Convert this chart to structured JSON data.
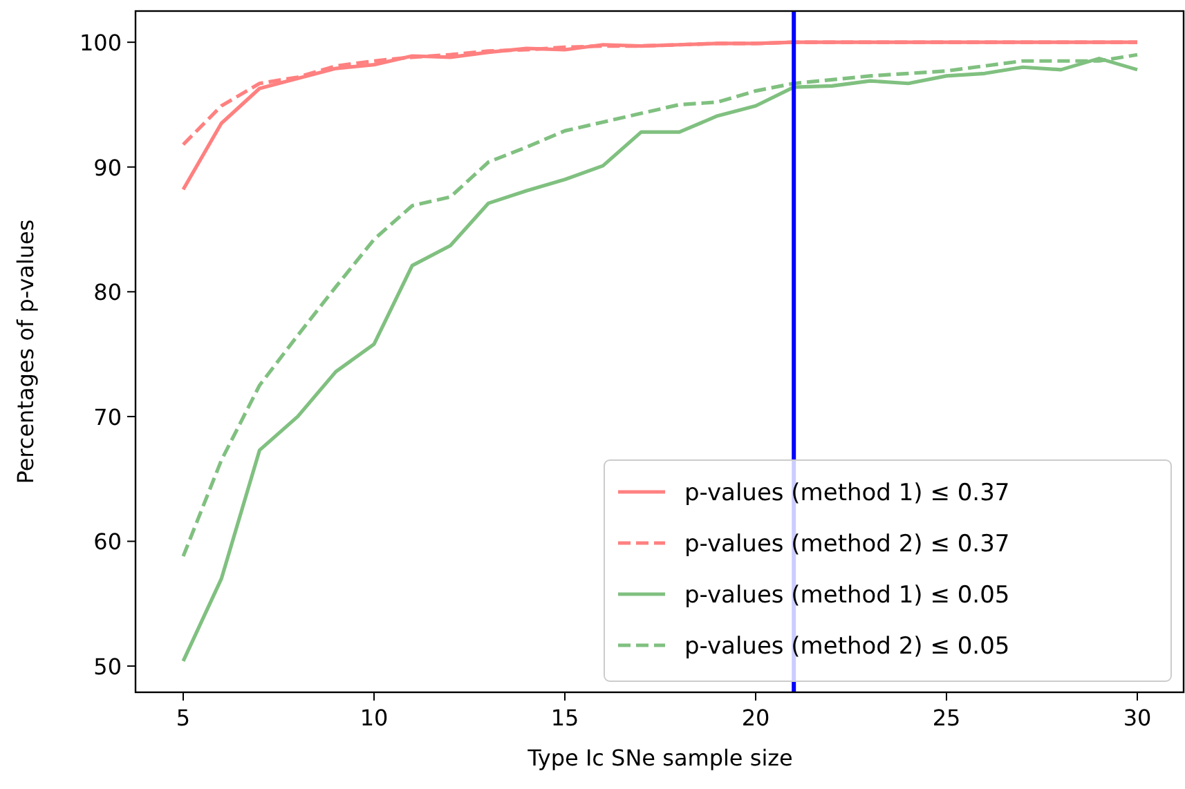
{
  "chart_data": {
    "type": "line",
    "xlabel": "Type Ic SNe sample size",
    "ylabel": "Percentages of p-values",
    "x": [
      5,
      6,
      7,
      8,
      9,
      10,
      11,
      12,
      13,
      14,
      15,
      16,
      17,
      18,
      19,
      20,
      21,
      22,
      23,
      24,
      25,
      26,
      27,
      28,
      29,
      30
    ],
    "xlim": [
      3.75,
      31.25
    ],
    "xticks": [
      5,
      10,
      15,
      20,
      25,
      30
    ],
    "ylim": [
      47.9,
      102.5
    ],
    "yticks": [
      50,
      60,
      70,
      80,
      90,
      100
    ],
    "series": [
      {
        "name": "p-values (method 1) ≤ 0.37",
        "color": "#ff8080",
        "line_style": "solid",
        "values": [
          88.2,
          93.5,
          96.3,
          97.1,
          97.9,
          98.2,
          98.9,
          98.8,
          99.2,
          99.5,
          99.4,
          99.8,
          99.7,
          99.8,
          99.9,
          99.9,
          100,
          100,
          100,
          100,
          100,
          100,
          100,
          100,
          100,
          100
        ]
      },
      {
        "name": "p-values (method 2) ≤ 0.37",
        "color": "#ff8080",
        "line_style": "dashed",
        "values": [
          91.8,
          94.9,
          96.7,
          97.2,
          98.1,
          98.5,
          98.8,
          99.0,
          99.3,
          99.4,
          99.6,
          99.7,
          99.7,
          99.8,
          99.9,
          99.9,
          100,
          100,
          100,
          100,
          100,
          100,
          100,
          100,
          100,
          100
        ]
      },
      {
        "name": "p-values (method 1) ≤ 0.05",
        "color": "#80c080",
        "line_style": "solid",
        "values": [
          50.4,
          57.0,
          67.3,
          70.0,
          73.6,
          75.8,
          82.1,
          83.7,
          87.1,
          88.1,
          89.0,
          90.1,
          92.8,
          92.8,
          94.1,
          94.9,
          96.4,
          96.5,
          96.9,
          96.7,
          97.3,
          97.5,
          98.0,
          97.8,
          98.7,
          97.8
        ]
      },
      {
        "name": "p-values (method 2) ≤ 0.05",
        "color": "#80c080",
        "line_style": "dashed",
        "values": [
          58.8,
          66.5,
          72.5,
          76.5,
          80.4,
          84.2,
          86.9,
          87.6,
          90.4,
          91.6,
          92.9,
          93.6,
          94.3,
          95.0,
          95.2,
          96.1,
          96.7,
          97.0,
          97.3,
          97.5,
          97.7,
          98.1,
          98.5,
          98.5,
          98.5,
          99.0
        ]
      }
    ],
    "ref_lines": [
      {
        "axis": "x",
        "value": 21,
        "color": "#0000ff",
        "line_style": "solid"
      }
    ],
    "legend": "bottom right",
    "grid": false
  }
}
